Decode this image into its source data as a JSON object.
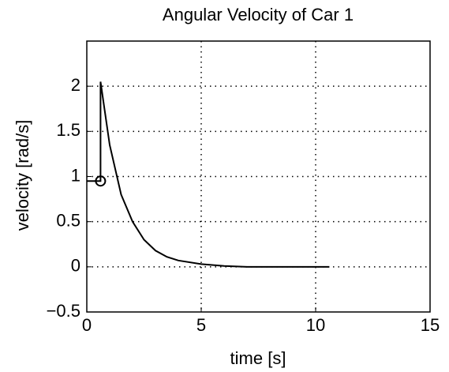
{
  "chart_data": {
    "type": "line",
    "title": "Angular Velocity of Car 1",
    "xlabel": "time [s]",
    "ylabel": "velocity  [rad/s]",
    "xlim": [
      0,
      15
    ],
    "xticks": [
      0,
      5,
      10,
      15
    ],
    "ylim": [
      -0.5,
      2.5
    ],
    "yticks": [
      {
        "value": -0.5,
        "label": "−0.5"
      },
      0,
      0.5,
      1,
      1.5,
      2
    ],
    "grid": true,
    "series": [
      {
        "color": "#000000",
        "x": [
          0,
          0.6,
          0.6,
          1,
          1.5,
          2,
          2.5,
          3,
          3.5,
          4,
          5,
          6,
          7,
          8,
          10.6
        ],
        "values": [
          0.95,
          0.95,
          2.05,
          1.35,
          0.8,
          0.5,
          0.3,
          0.18,
          0.11,
          0.07,
          0.03,
          0.01,
          0,
          0,
          0
        ]
      }
    ],
    "marker_point": {
      "x": 0.6,
      "y": 0.95
    }
  }
}
